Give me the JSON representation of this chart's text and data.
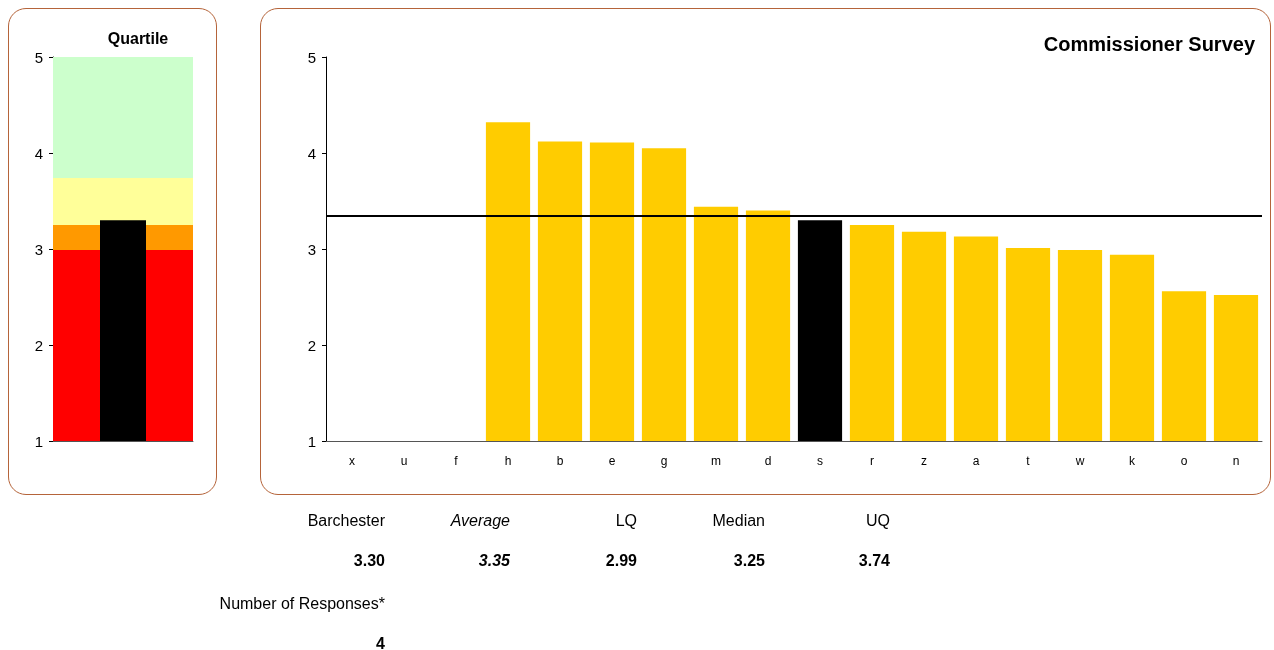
{
  "chart_data": [
    {
      "type": "bar",
      "title": "Quartile",
      "categories": [
        null
      ],
      "values": [
        3.3
      ],
      "colors": [
        "#000000"
      ],
      "ylim": [
        1,
        5
      ],
      "yticks": [
        1,
        2,
        3,
        4,
        5
      ],
      "grid": false,
      "tick_labels": "y",
      "bands": [
        {
          "axis": "y",
          "from": 1,
          "to": 2.99,
          "color": "#ff0000"
        },
        {
          "axis": "y",
          "from": 2.99,
          "to": 3.25,
          "color": "#ff9900"
        },
        {
          "axis": "y",
          "from": 3.25,
          "to": 3.74,
          "color": "#ffff99"
        },
        {
          "axis": "y",
          "from": 3.74,
          "to": 5,
          "color": "#ccffcc"
        }
      ]
    },
    {
      "type": "bar",
      "title": "Commissioner Survey",
      "categories": [
        "x",
        "u",
        "f",
        "h",
        "b",
        "e",
        "g",
        "m",
        "d",
        "s",
        "r",
        "z",
        "a",
        "t",
        "w",
        "k",
        "o",
        "n"
      ],
      "values": [
        null,
        null,
        null,
        4.32,
        4.12,
        4.11,
        4.05,
        3.44,
        3.4,
        3.3,
        3.25,
        3.18,
        3.13,
        3.01,
        2.99,
        2.94,
        2.56,
        2.52
      ],
      "colors": [
        "#ffcc00",
        "#ffcc00",
        "#ffcc00",
        "#ffcc00",
        "#ffcc00",
        "#ffcc00",
        "#ffcc00",
        "#ffcc00",
        "#ffcc00",
        "#000000",
        "#ffcc00",
        "#ffcc00",
        "#ffcc00",
        "#ffcc00",
        "#ffcc00",
        "#ffcc00",
        "#ffcc00",
        "#ffcc00"
      ],
      "ylim": [
        1,
        5
      ],
      "yticks": [
        1,
        2,
        3,
        4,
        5
      ],
      "grid": false,
      "ref_lines": [
        {
          "axis": "y",
          "value": 3.35,
          "color": "#000000"
        }
      ],
      "annotations": [
        "Barchester",
        "Average",
        "LQ",
        "Median",
        "UQ",
        "3.30",
        "3.35",
        "2.99",
        "3.25",
        "3.74",
        "Number of Responses*",
        "4"
      ]
    }
  ]
}
